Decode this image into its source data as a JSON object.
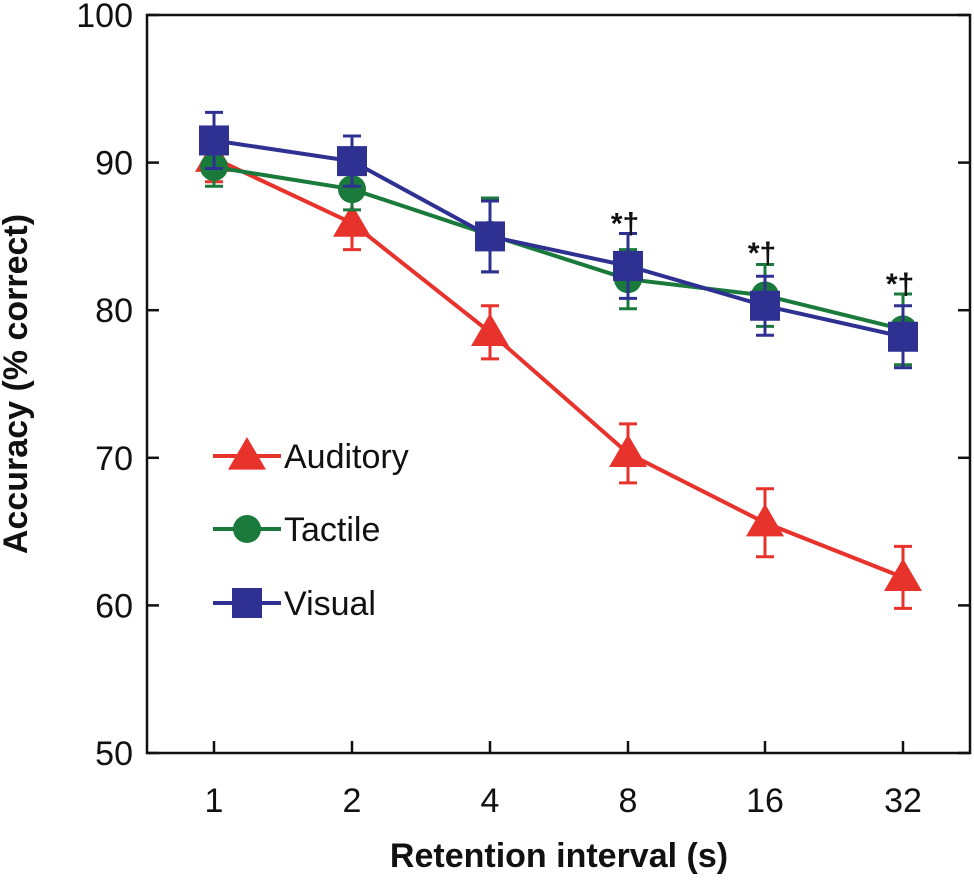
{
  "chart_data": {
    "type": "line",
    "title": "",
    "xlabel": "Retention interval (s)",
    "ylabel": "Accuracy (% correct)",
    "x_scale": "log2",
    "categories": [
      "1",
      "2",
      "4",
      "8",
      "16",
      "32"
    ],
    "x": [
      1,
      2,
      4,
      8,
      16,
      32
    ],
    "ylim": [
      50,
      100
    ],
    "yticks": [
      "50",
      "60",
      "70",
      "80",
      "90",
      "100"
    ],
    "grid": false,
    "legend_position": "bottom-left",
    "series": [
      {
        "name": "Auditory",
        "color": "#e8322c",
        "marker": "triangle",
        "values": [
          90.3,
          85.9,
          78.5,
          70.3,
          65.6,
          61.9
        ],
        "error": [
          1.6,
          1.8,
          1.8,
          2.0,
          2.3,
          2.1
        ]
      },
      {
        "name": "Tactile",
        "color": "#1a7a3c",
        "marker": "circle",
        "values": [
          89.7,
          88.2,
          85.1,
          82.1,
          81.0,
          78.7
        ],
        "error": [
          1.3,
          1.4,
          2.5,
          2.0,
          2.1,
          2.4
        ]
      },
      {
        "name": "Visual",
        "color": "#2e3192",
        "marker": "square",
        "values": [
          91.5,
          90.1,
          85.0,
          83.0,
          80.3,
          78.2
        ],
        "error": [
          1.9,
          1.7,
          2.4,
          2.2,
          2.0,
          2.1
        ]
      }
    ],
    "annotations": [
      {
        "x": 8,
        "y": 85.2,
        "text": "*†"
      },
      {
        "x": 16,
        "y": 83.2,
        "text": "*†"
      },
      {
        "x": 32,
        "y": 81.1,
        "text": "*†"
      }
    ]
  }
}
